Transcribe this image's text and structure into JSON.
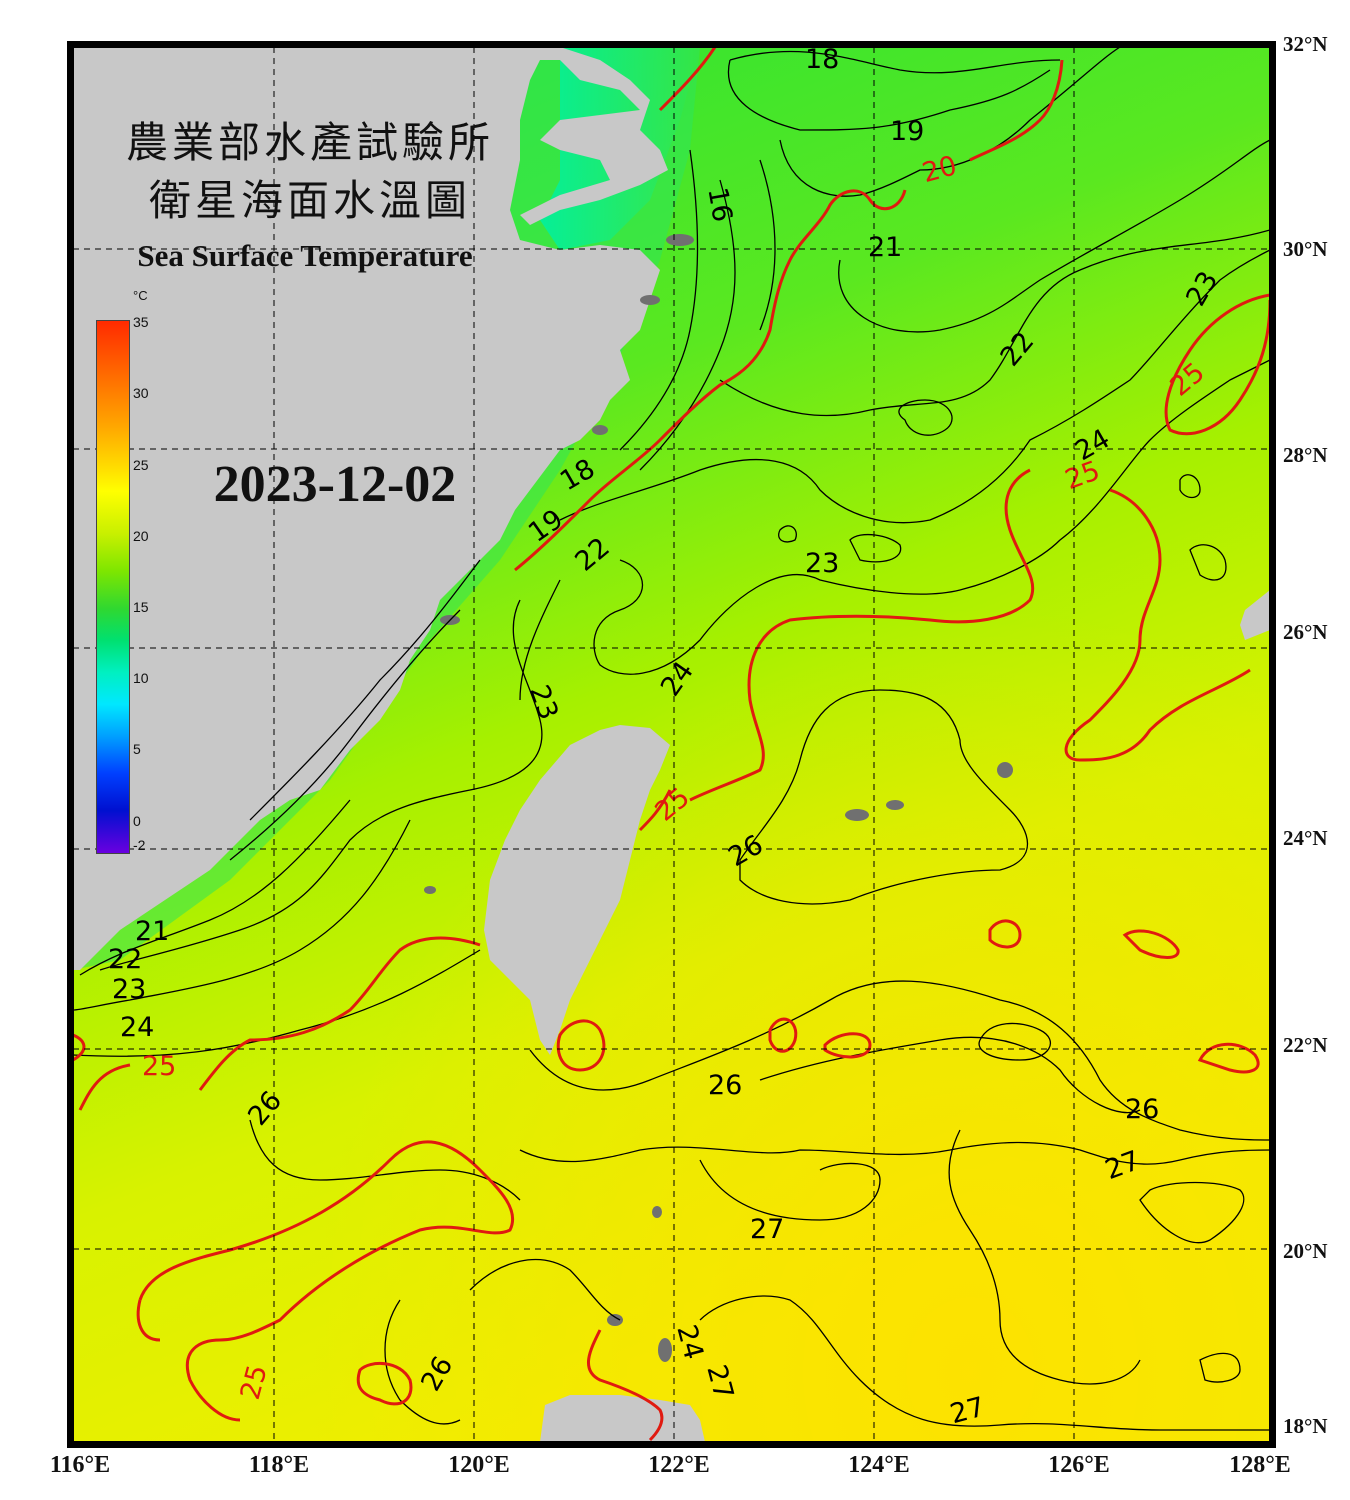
{
  "title": {
    "line1": "農業部水產試驗所",
    "line2": "衛星海面水溫圖",
    "english": "Sea Surface Temperature"
  },
  "date": "2023-12-02",
  "colorbar": {
    "unit": "°C",
    "ticks": [
      "35",
      "30",
      "25",
      "20",
      "15",
      "10",
      "5",
      "0",
      "-2"
    ],
    "min": -2,
    "max": 35
  },
  "axes": {
    "lat_labels": [
      "32°N",
      "30°N",
      "28°N",
      "26°N",
      "24°N",
      "22°N",
      "20°N",
      "18°N"
    ],
    "lon_labels": [
      "116°E",
      "118°E",
      "120°E",
      "122°E",
      "124°E",
      "126°E",
      "128°E"
    ]
  },
  "contour_labels": {
    "black": [
      "18",
      "19",
      "21",
      "16",
      "22",
      "23",
      "24",
      "18",
      "19",
      "22",
      "23",
      "24",
      "23",
      "21",
      "22",
      "23",
      "24",
      "26",
      "26",
      "26",
      "27",
      "27",
      "27",
      "26",
      "26",
      "27",
      "24"
    ],
    "red": [
      "20",
      "25",
      "25",
      "25",
      "25",
      "25"
    ]
  },
  "colors": {
    "land": "#c8c8c8",
    "island": "#707070",
    "isotherm_major": "#e01a10",
    "isotherm_minor": "#000000"
  }
}
